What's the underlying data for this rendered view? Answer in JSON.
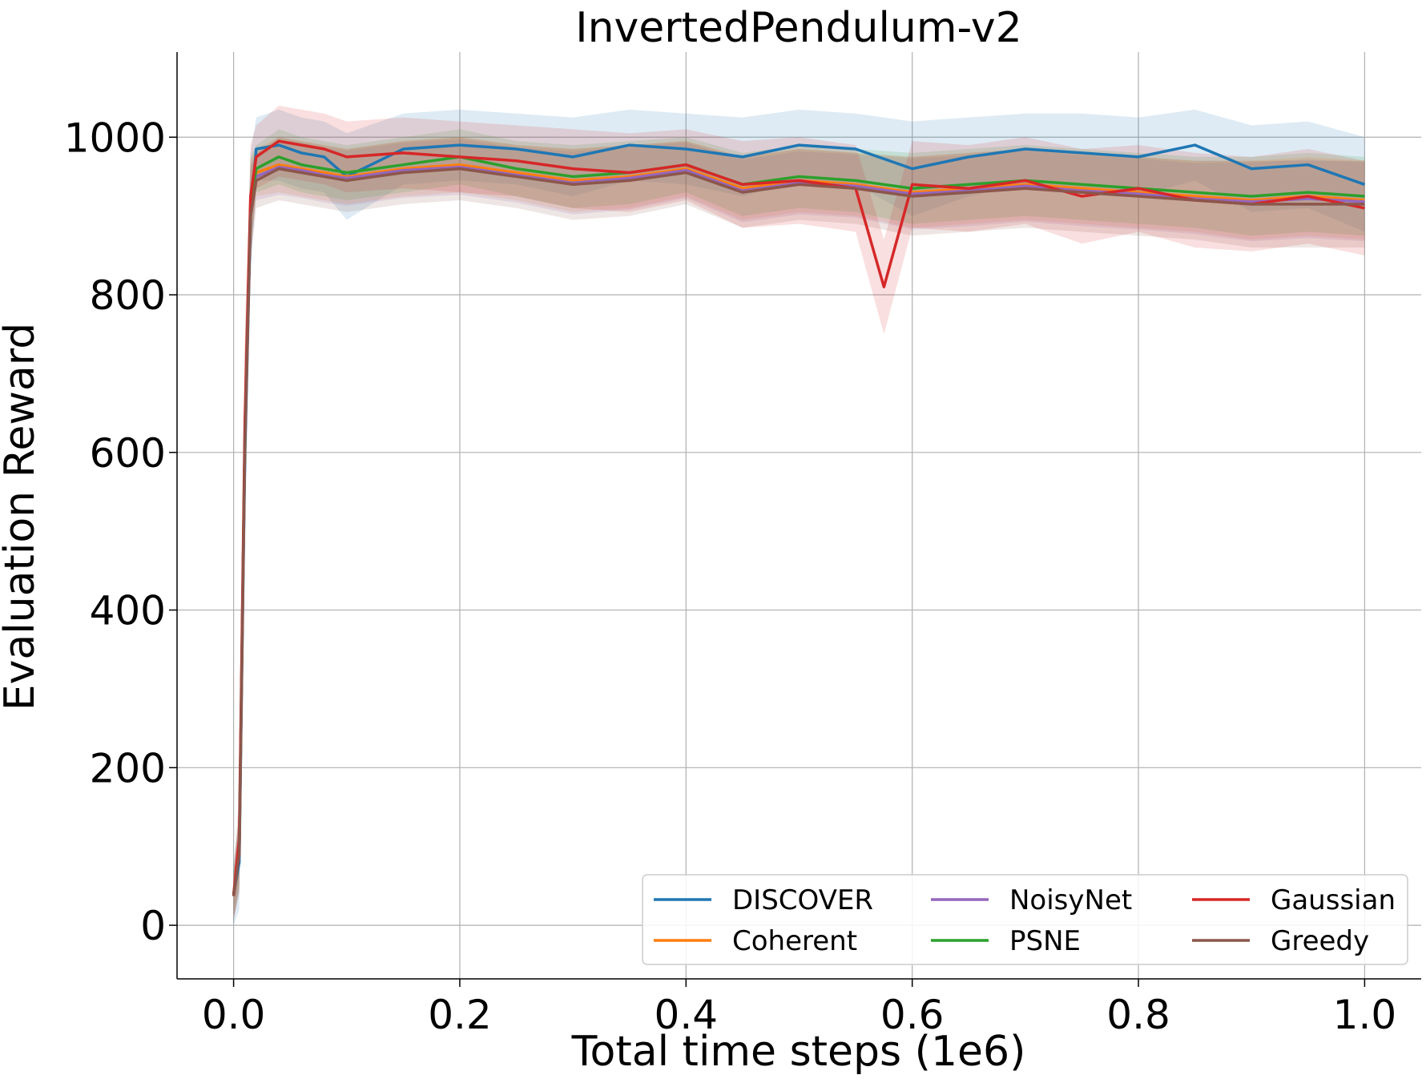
{
  "chart_data": {
    "type": "line",
    "title": "InvertedPendulum-v2",
    "xlabel": "Total time steps (1e6)",
    "ylabel": "Evaluation Reward",
    "xlim": [
      -0.05,
      1.05
    ],
    "ylim": [
      -68,
      1108
    ],
    "xticks": [
      0.0,
      0.2,
      0.4,
      0.6,
      0.8,
      1.0
    ],
    "xtick_labels": [
      "0.0",
      "0.2",
      "0.4",
      "0.6",
      "0.8",
      "1.0"
    ],
    "yticks": [
      0,
      200,
      400,
      600,
      800,
      1000
    ],
    "ytick_labels": [
      "0",
      "200",
      "400",
      "600",
      "800",
      "1000"
    ],
    "grid": true,
    "shaded_band": "std",
    "legend": {
      "placement": "bottom-right",
      "columns": 3
    },
    "series": [
      {
        "name": "DISCOVER",
        "color": "#1f77b4",
        "x": [
          0.0,
          0.005,
          0.01,
          0.015,
          0.02,
          0.04,
          0.06,
          0.08,
          0.1,
          0.15,
          0.2,
          0.25,
          0.3,
          0.35,
          0.4,
          0.45,
          0.5,
          0.55,
          0.6,
          0.65,
          0.7,
          0.75,
          0.8,
          0.85,
          0.9,
          0.95,
          1.0
        ],
        "y": [
          40,
          80,
          600,
          900,
          985,
          990,
          980,
          975,
          950,
          985,
          990,
          985,
          975,
          990,
          985,
          975,
          990,
          985,
          960,
          975,
          985,
          980,
          975,
          990,
          960,
          965,
          940
        ],
        "std": [
          40,
          60,
          120,
          80,
          40,
          45,
          45,
          45,
          55,
          45,
          45,
          45,
          50,
          45,
          45,
          50,
          45,
          45,
          60,
          50,
          45,
          50,
          50,
          45,
          55,
          55,
          60
        ]
      },
      {
        "name": "Coherent",
        "color": "#ff7f0e",
        "x": [
          0.0,
          0.005,
          0.01,
          0.015,
          0.02,
          0.04,
          0.06,
          0.08,
          0.1,
          0.15,
          0.2,
          0.25,
          0.3,
          0.35,
          0.4,
          0.45,
          0.5,
          0.55,
          0.6,
          0.65,
          0.7,
          0.75,
          0.8,
          0.85,
          0.9,
          0.95,
          1.0
        ],
        "y": [
          38,
          95,
          620,
          910,
          955,
          965,
          960,
          955,
          950,
          960,
          965,
          955,
          945,
          950,
          960,
          935,
          945,
          940,
          930,
          935,
          940,
          935,
          930,
          925,
          920,
          925,
          920
        ],
        "std": [
          30,
          50,
          110,
          60,
          30,
          35,
          35,
          35,
          35,
          35,
          35,
          35,
          40,
          40,
          35,
          40,
          40,
          40,
          45,
          45,
          45,
          45,
          45,
          45,
          50,
          50,
          50
        ]
      },
      {
        "name": "NoisyNet",
        "color": "#9467bd",
        "x": [
          0.0,
          0.005,
          0.01,
          0.015,
          0.02,
          0.04,
          0.06,
          0.08,
          0.1,
          0.15,
          0.2,
          0.25,
          0.3,
          0.35,
          0.4,
          0.45,
          0.5,
          0.55,
          0.6,
          0.65,
          0.7,
          0.75,
          0.8,
          0.85,
          0.9,
          0.95,
          1.0
        ],
        "y": [
          37,
          92,
          615,
          905,
          950,
          962,
          958,
          952,
          948,
          958,
          962,
          952,
          942,
          948,
          958,
          932,
          942,
          938,
          928,
          932,
          938,
          932,
          928,
          922,
          918,
          922,
          918
        ],
        "std": [
          30,
          50,
          110,
          60,
          30,
          35,
          35,
          35,
          35,
          35,
          35,
          35,
          40,
          40,
          35,
          40,
          40,
          40,
          45,
          45,
          45,
          45,
          45,
          45,
          50,
          50,
          50
        ]
      },
      {
        "name": "PSNE",
        "color": "#2ca02c",
        "x": [
          0.0,
          0.005,
          0.01,
          0.015,
          0.02,
          0.04,
          0.06,
          0.08,
          0.1,
          0.15,
          0.2,
          0.25,
          0.3,
          0.35,
          0.4,
          0.45,
          0.5,
          0.55,
          0.6,
          0.65,
          0.7,
          0.75,
          0.8,
          0.85,
          0.9,
          0.95,
          1.0
        ],
        "y": [
          39,
          98,
          625,
          915,
          960,
          975,
          965,
          960,
          955,
          965,
          975,
          960,
          950,
          955,
          965,
          940,
          950,
          945,
          935,
          940,
          945,
          940,
          935,
          930,
          925,
          930,
          925
        ],
        "std": [
          30,
          50,
          110,
          60,
          30,
          35,
          35,
          35,
          35,
          35,
          35,
          35,
          40,
          40,
          35,
          40,
          40,
          40,
          45,
          45,
          45,
          45,
          45,
          45,
          50,
          50,
          50
        ]
      },
      {
        "name": "Gaussian",
        "color": "#d62728",
        "x": [
          0.0,
          0.005,
          0.01,
          0.015,
          0.02,
          0.04,
          0.06,
          0.08,
          0.1,
          0.15,
          0.2,
          0.25,
          0.3,
          0.35,
          0.4,
          0.45,
          0.5,
          0.55,
          0.575,
          0.6,
          0.65,
          0.7,
          0.75,
          0.8,
          0.85,
          0.9,
          0.95,
          1.0
        ],
        "y": [
          38,
          110,
          640,
          925,
          975,
          995,
          990,
          985,
          975,
          980,
          975,
          970,
          960,
          955,
          965,
          940,
          945,
          935,
          810,
          940,
          935,
          945,
          925,
          935,
          920,
          915,
          925,
          910
        ],
        "std": [
          30,
          55,
          115,
          65,
          40,
          45,
          45,
          45,
          45,
          45,
          45,
          45,
          50,
          50,
          45,
          55,
          55,
          55,
          60,
          55,
          55,
          55,
          60,
          55,
          60,
          60,
          60,
          60
        ]
      },
      {
        "name": "Greedy",
        "color": "#8c564b",
        "x": [
          0.0,
          0.005,
          0.01,
          0.015,
          0.02,
          0.04,
          0.06,
          0.08,
          0.1,
          0.15,
          0.2,
          0.25,
          0.3,
          0.35,
          0.4,
          0.45,
          0.5,
          0.55,
          0.6,
          0.65,
          0.7,
          0.75,
          0.8,
          0.85,
          0.9,
          0.95,
          1.0
        ],
        "y": [
          37,
          90,
          610,
          900,
          945,
          960,
          955,
          950,
          945,
          955,
          960,
          950,
          940,
          945,
          955,
          930,
          940,
          935,
          925,
          930,
          935,
          930,
          925,
          920,
          915,
          915,
          915
        ],
        "std": [
          30,
          50,
          110,
          60,
          35,
          40,
          40,
          40,
          40,
          40,
          40,
          40,
          45,
          45,
          40,
          45,
          45,
          45,
          50,
          50,
          50,
          50,
          50,
          50,
          55,
          55,
          55
        ]
      }
    ]
  }
}
